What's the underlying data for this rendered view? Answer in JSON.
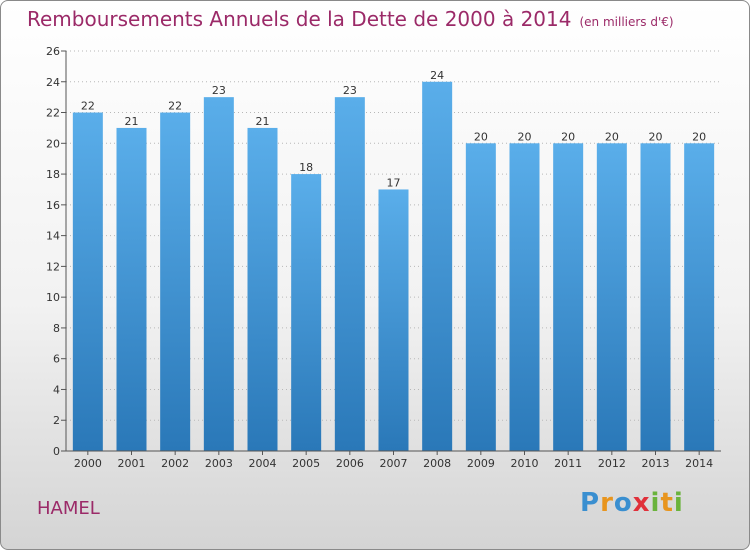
{
  "title": "Remboursements Annuels de la Dette de 2000 à 2014",
  "unit": "(en milliers d'€)",
  "commune": "HAMEL",
  "logo": {
    "text": "Proxiti",
    "letters": [
      {
        "ch": "P",
        "color": "#3a8fd0"
      },
      {
        "ch": "r",
        "color": "#e8951e"
      },
      {
        "ch": "o",
        "color": "#3a8fd0"
      },
      {
        "ch": "x",
        "color": "#e0303a"
      },
      {
        "ch": "i",
        "color": "#6ab33c"
      },
      {
        "ch": "t",
        "color": "#e8951e"
      },
      {
        "ch": "i",
        "color": "#6ab33c"
      }
    ]
  },
  "chart_data": {
    "type": "bar",
    "title": "Remboursements Annuels de la Dette de 2000 à 2014",
    "categories": [
      "2000",
      "2001",
      "2002",
      "2003",
      "2004",
      "2005",
      "2006",
      "2007",
      "2008",
      "2009",
      "2010",
      "2011",
      "2012",
      "2013",
      "2014"
    ],
    "values": [
      22,
      21,
      22,
      23,
      21,
      18,
      23,
      17,
      24,
      20,
      20,
      20,
      20,
      20,
      20
    ],
    "ylim": [
      0,
      26
    ],
    "yticks": [
      0,
      2,
      4,
      6,
      8,
      10,
      12,
      14,
      16,
      18,
      20,
      22,
      24,
      26
    ],
    "grid": true,
    "bar_color_top": "#5aaeea",
    "bar_color_bottom": "#2a78b8"
  }
}
